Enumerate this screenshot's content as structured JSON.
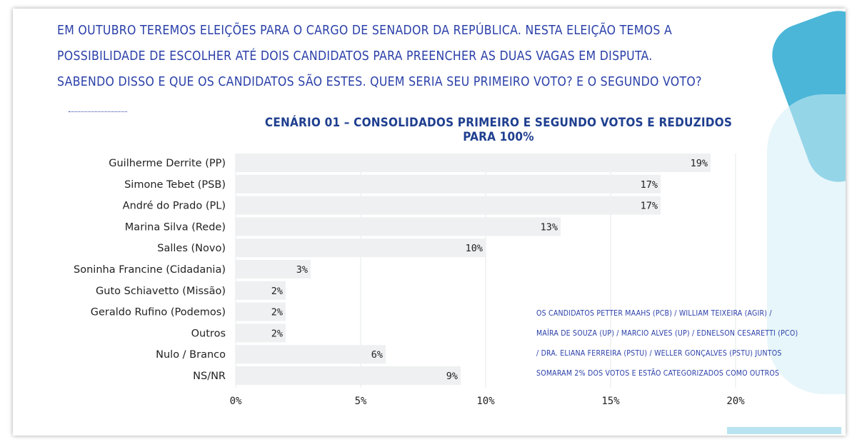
{
  "question_lines": [
    "EM OUTUBRO TEREMOS ELEIÇÕES PARA O CARGO DE SENADOR DA REPÚBLICA. NESTA ELEIÇÃO TEMOS A",
    "POSSIBILIDADE DE ESCOLHER ATÉ DOIS CANDIDATOS PARA PREENCHER AS DUAS VAGAS EM DISPUTA.",
    "SABENDO DISSO E QUE OS CANDIDATOS SÃO ESTES. QUEM SERIA SEU PRIMEIRO VOTO? E O SEGUNDO VOTO?"
  ],
  "note_lines": [
    "OS CANDIDATOS PETTER MAAHS (PCB) / WILLIAM TEIXEIRA (AGIR) /",
    "MAÍRA DE SOUZA (UP) / MARCIO ALVES (UP) / EDNELSON CESARETTI (PCO)",
    "/ DRA. ELIANA FERREIRA (PSTU) / WELLER GONÇALVES (PSTU) JUNTOS",
    "SOMARAM 2% DOS VOTOS E ESTÃO CATEGORIZADOS COMO OUTROS"
  ],
  "colors": {
    "text_blue": "#2a3fa8",
    "title_blue": "#1f3f8f",
    "bar": "#eef0f1",
    "grid": "#e6e8ea",
    "label": "#222222",
    "deco_blue": "#4bb6d8",
    "deco_light": "#d3eef6",
    "deco_bottom": "#b9e3f0"
  },
  "chart_data": {
    "type": "bar",
    "orientation": "horizontal",
    "title": "CENÁRIO 01 – CONSOLIDADOS PRIMEIRO E SEGUNDO VOTOS E REDUZIDOS PARA 100%",
    "categories": [
      "Guilherme Derrite (PP)",
      "Simone Tebet (PSB)",
      "André do Prado (PL)",
      "Marina Silva (Rede)",
      "Salles (Novo)",
      "Soninha Francine (Cidadania)",
      "Guto Schiavetto (Missão)",
      "Geraldo Rufino (Podemos)",
      "Outros",
      "Nulo / Branco",
      "NS/NR"
    ],
    "values": [
      19,
      17,
      17,
      13,
      10,
      3,
      2,
      2,
      2,
      6,
      9
    ],
    "value_labels": [
      "19%",
      "17%",
      "17%",
      "13%",
      "10%",
      "3%",
      "2%",
      "2%",
      "2%",
      "6%",
      "9%"
    ],
    "xlim": [
      0,
      20
    ],
    "xticks": [
      0,
      5,
      10,
      15,
      20
    ],
    "xtick_labels": [
      "0%",
      "5%",
      "10%",
      "15%",
      "20%"
    ],
    "grid": true,
    "legend": "none"
  }
}
